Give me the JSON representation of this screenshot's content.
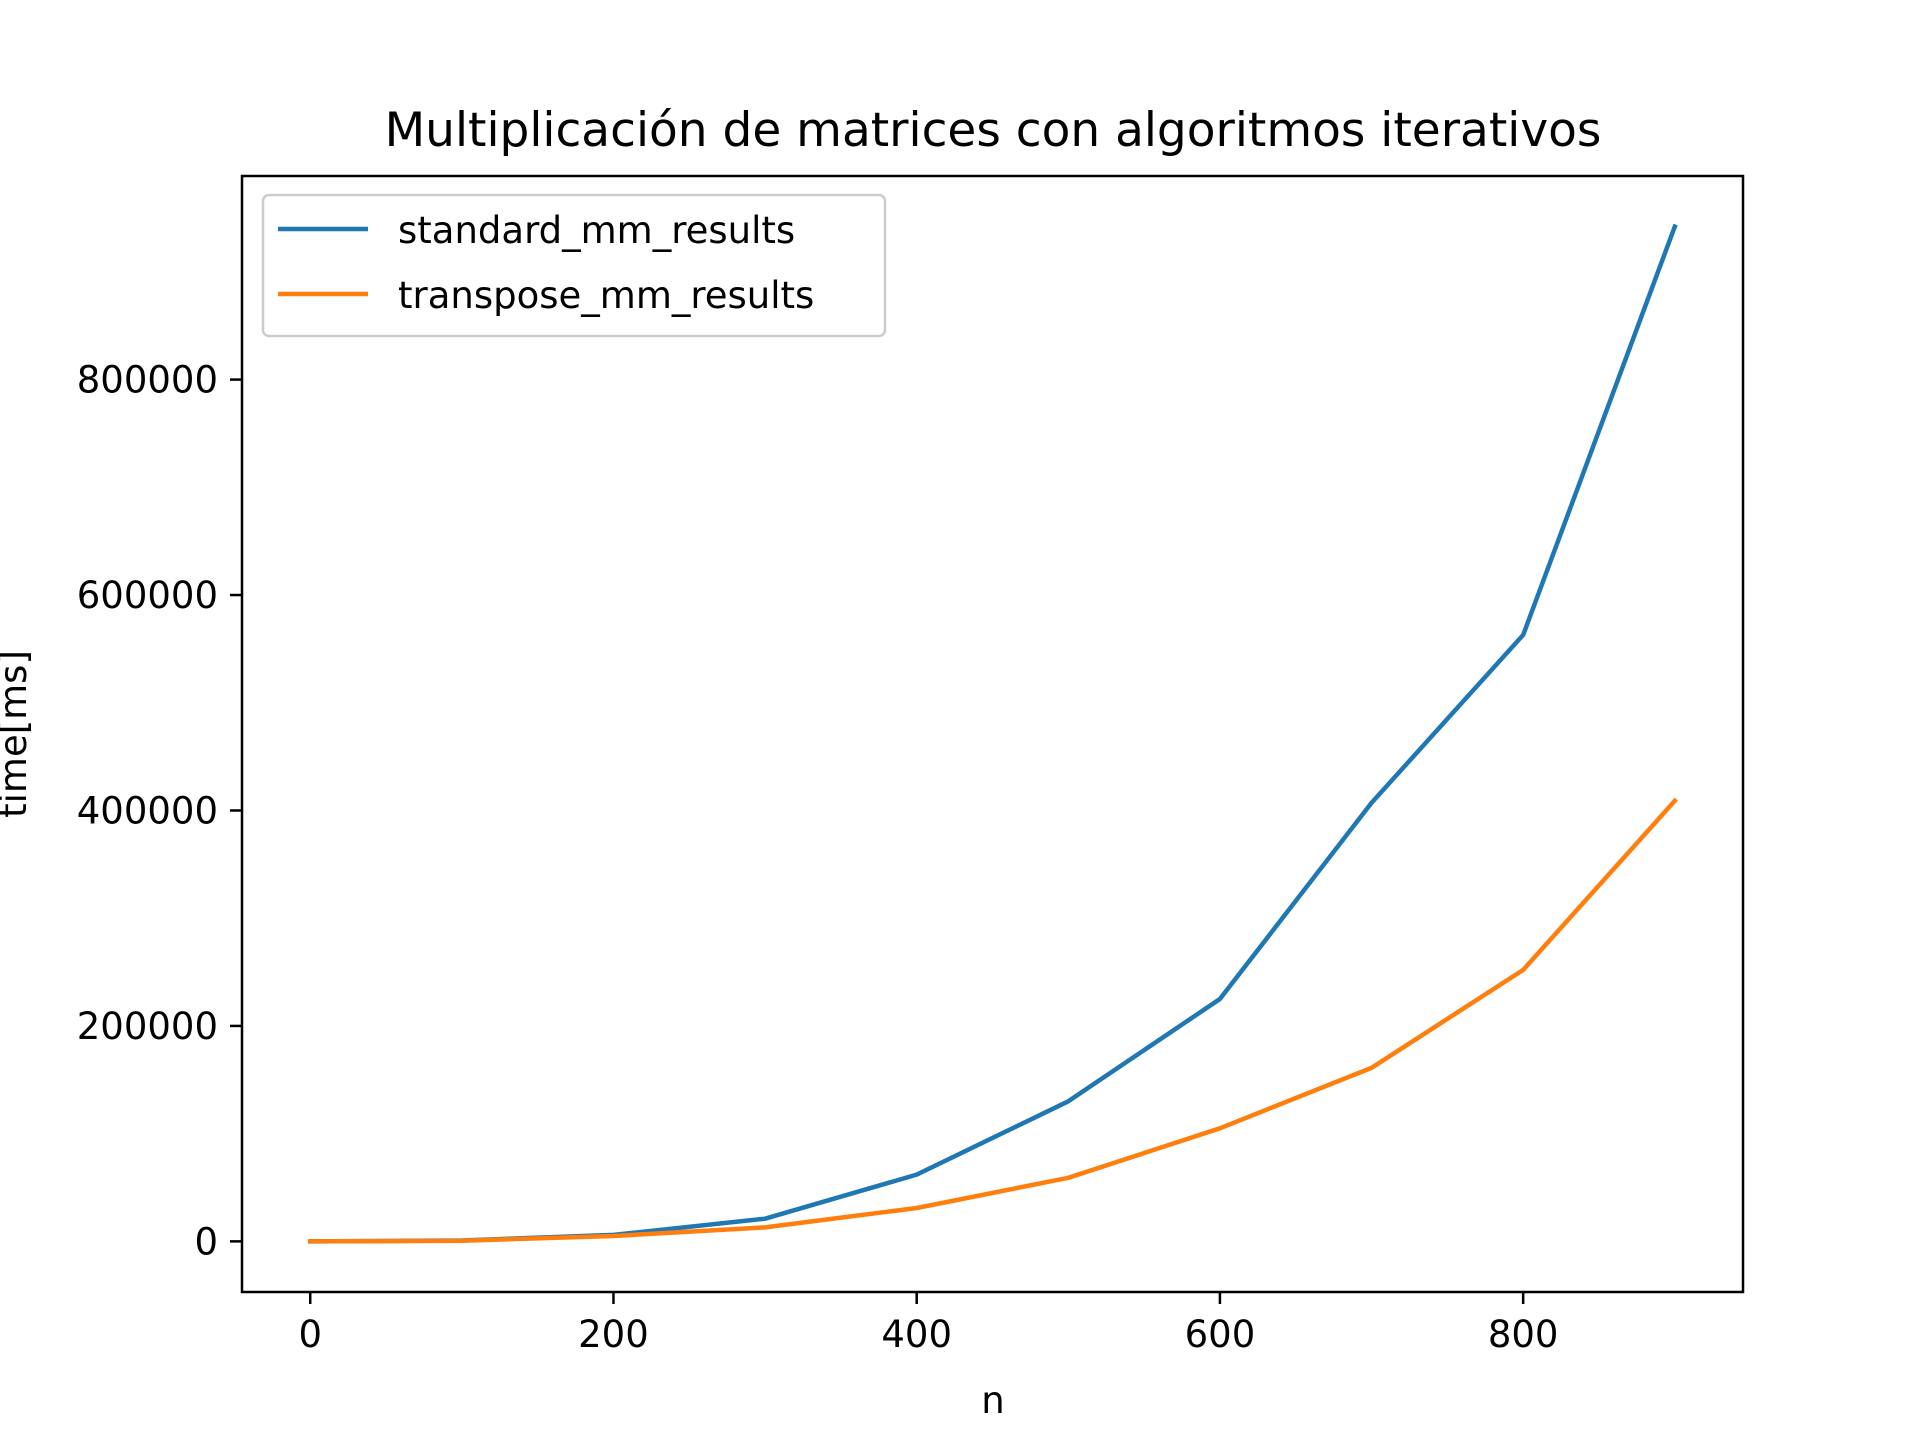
{
  "chart_data": {
    "type": "line",
    "title": "Multiplicación de matrices con algoritmos iterativos",
    "xlabel": "n",
    "ylabel": "time[ms]",
    "xlim": [
      -45,
      945
    ],
    "ylim": [
      -47000,
      989000
    ],
    "xticks": [
      0,
      200,
      400,
      600,
      800
    ],
    "yticks": [
      0,
      200000,
      400000,
      600000,
      800000
    ],
    "x": [
      0,
      100,
      200,
      300,
      400,
      500,
      600,
      700,
      800,
      900
    ],
    "series": [
      {
        "name": "standard_mm_results",
        "color": "#1f77b4",
        "values": [
          0,
          800,
          6000,
          21000,
          62000,
          130000,
          225000,
          407000,
          563000,
          942000
        ]
      },
      {
        "name": "transpose_mm_results",
        "color": "#ff7f0e",
        "values": [
          0,
          600,
          5000,
          13000,
          31000,
          59000,
          105000,
          161000,
          252000,
          409000
        ]
      }
    ],
    "legend_position": "top-left",
    "grid": false
  }
}
